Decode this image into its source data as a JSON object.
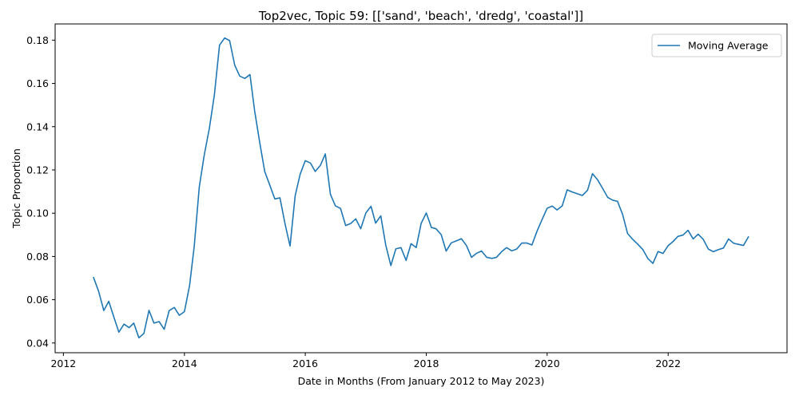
{
  "chart_data": {
    "type": "line",
    "title": "Top2vec, Topic 59: [['sand', 'beach', 'dredg', 'coastal']]",
    "xlabel": "Date in Months (From January 2012 to May 2023)",
    "ylabel": "Topic Proportion",
    "xlim": [
      "2011-11-12",
      "2023-12-20"
    ],
    "ylim": [
      0.0355,
      0.1875
    ],
    "x_ticks": [
      "2012",
      "2014",
      "2016",
      "2018",
      "2020",
      "2022"
    ],
    "y_ticks": [
      "0.04",
      "0.06",
      "0.08",
      "0.10",
      "0.12",
      "0.14",
      "0.16",
      "0.18"
    ],
    "grid": false,
    "legend_position": "top-right",
    "color": "#1f77b4",
    "series": [
      {
        "name": "Moving Average",
        "x": [
          "2012-07",
          "2012-08",
          "2012-09",
          "2012-10",
          "2012-11",
          "2012-12",
          "2013-01",
          "2013-02",
          "2013-03",
          "2013-04",
          "2013-05",
          "2013-06",
          "2013-07",
          "2013-08",
          "2013-09",
          "2013-10",
          "2013-11",
          "2013-12",
          "2014-01",
          "2014-02",
          "2014-03",
          "2014-04",
          "2014-05",
          "2014-06",
          "2014-07",
          "2014-08",
          "2014-09",
          "2014-10",
          "2014-11",
          "2014-12",
          "2015-01",
          "2015-02",
          "2015-03",
          "2015-04",
          "2015-05",
          "2015-06",
          "2015-07",
          "2015-08",
          "2015-09",
          "2015-10",
          "2015-11",
          "2015-12",
          "2016-01",
          "2016-02",
          "2016-03",
          "2016-04",
          "2016-05",
          "2016-06",
          "2016-07",
          "2016-08",
          "2016-09",
          "2016-10",
          "2016-11",
          "2016-12",
          "2017-01",
          "2017-02",
          "2017-03",
          "2017-04",
          "2017-05",
          "2017-06",
          "2017-07",
          "2017-08",
          "2017-09",
          "2017-10",
          "2017-11",
          "2017-12",
          "2018-01",
          "2018-02",
          "2018-03",
          "2018-04",
          "2018-05",
          "2018-06",
          "2018-07",
          "2018-08",
          "2018-09",
          "2018-10",
          "2018-11",
          "2018-12",
          "2019-01",
          "2019-02",
          "2019-03",
          "2019-04",
          "2019-05",
          "2019-06",
          "2019-07",
          "2019-08",
          "2019-09",
          "2019-10",
          "2019-11",
          "2019-12",
          "2020-01",
          "2020-02",
          "2020-03",
          "2020-04",
          "2020-05",
          "2020-06",
          "2020-07",
          "2020-08",
          "2020-09",
          "2020-10",
          "2020-11",
          "2020-12",
          "2021-01",
          "2021-02",
          "2021-03",
          "2021-04",
          "2021-05",
          "2021-06",
          "2021-07",
          "2021-08",
          "2021-09",
          "2021-10",
          "2021-11",
          "2021-12",
          "2022-01",
          "2022-02",
          "2022-03",
          "2022-04",
          "2022-05",
          "2022-06",
          "2022-07",
          "2022-08",
          "2022-09",
          "2022-10",
          "2022-11",
          "2022-12",
          "2023-01",
          "2023-02",
          "2023-03",
          "2023-04",
          "2023-05"
        ],
        "values": [
          0.0703,
          0.0638,
          0.055,
          0.0593,
          0.0519,
          0.045,
          0.0487,
          0.0471,
          0.0492,
          0.0424,
          0.0444,
          0.0551,
          0.0492,
          0.0499,
          0.0463,
          0.055,
          0.0564,
          0.0528,
          0.0545,
          0.0665,
          0.0845,
          0.1123,
          0.127,
          0.1394,
          0.1547,
          0.1777,
          0.181,
          0.1798,
          0.1684,
          0.1634,
          0.1623,
          0.1641,
          0.1474,
          0.1326,
          0.1193,
          0.1129,
          0.1066,
          0.1071,
          0.095,
          0.0848,
          0.1081,
          0.118,
          0.1243,
          0.1232,
          0.1193,
          0.1221,
          0.1274,
          0.1087,
          0.1034,
          0.1022,
          0.0943,
          0.0952,
          0.0974,
          0.0928,
          0.1001,
          0.1032,
          0.0954,
          0.0988,
          0.0853,
          0.0758,
          0.0835,
          0.0841,
          0.0782,
          0.0859,
          0.0841,
          0.0953,
          0.1001,
          0.0934,
          0.0928,
          0.0901,
          0.0825,
          0.0863,
          0.0872,
          0.0882,
          0.085,
          0.0796,
          0.0815,
          0.0825,
          0.0796,
          0.0791,
          0.0796,
          0.0822,
          0.0841,
          0.0826,
          0.0834,
          0.0862,
          0.0862,
          0.0853,
          0.0917,
          0.097,
          0.1023,
          0.1033,
          0.1015,
          0.1034,
          0.1108,
          0.1098,
          0.109,
          0.1082,
          0.1106,
          0.1183,
          0.1154,
          0.1115,
          0.1073,
          0.106,
          0.1055,
          0.0994,
          0.0906,
          0.0879,
          0.0857,
          0.0832,
          0.079,
          0.0768,
          0.0823,
          0.0814,
          0.085,
          0.087,
          0.0893,
          0.0899,
          0.0921,
          0.0881,
          0.0903,
          0.0879,
          0.0834,
          0.0822,
          0.0832,
          0.0839,
          0.0881,
          0.0861,
          0.0856,
          0.0851,
          0.0891
        ]
      }
    ]
  }
}
